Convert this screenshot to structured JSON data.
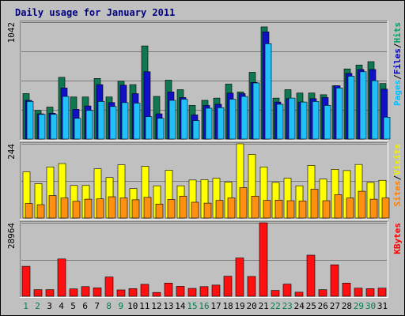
{
  "chart_data": {
    "type": "bar",
    "title": "Daily usage for January 2011",
    "categories": [
      "1",
      "2",
      "3",
      "4",
      "5",
      "6",
      "7",
      "8",
      "9",
      "10",
      "11",
      "12",
      "13",
      "14",
      "15",
      "16",
      "17",
      "18",
      "19",
      "20",
      "21",
      "22",
      "23",
      "24",
      "25",
      "26",
      "27",
      "28",
      "29",
      "30",
      "31"
    ],
    "weekend_days": [
      "1",
      "2",
      "8",
      "9",
      "15",
      "16",
      "22",
      "23",
      "29",
      "30"
    ],
    "panels": [
      {
        "id": "hits-files-pages",
        "max_label": "1042",
        "ylim": [
          0,
          1042
        ],
        "axis_labels": [
          {
            "text": "Pages",
            "color": "#00c0ff"
          },
          {
            "text": "Files",
            "color": "#0000c0"
          },
          {
            "text": "Hits",
            "color": "#00a060"
          }
        ],
        "series": [
          {
            "name": "Hits",
            "color": "#107850",
            "values": [
              405,
              255,
              285,
              550,
              375,
              375,
              540,
              375,
              515,
              485,
              830,
              380,
              525,
              440,
              300,
              345,
              365,
              490,
              420,
              595,
              1000,
              365,
              440,
              410,
              410,
              395,
              475,
              625,
              660,
              690,
              495
            ]
          },
          {
            "name": "Files",
            "color": "#1010c8",
            "values": [
              345,
              225,
              230,
              455,
              265,
              295,
              485,
              325,
              480,
              405,
              600,
              225,
              420,
              370,
              215,
              300,
              310,
              410,
              405,
              505,
              955,
              330,
              360,
              330,
              360,
              370,
              475,
              585,
              620,
              620,
              445
            ]
          },
          {
            "name": "Pages",
            "color": "#20c0f8",
            "values": [
              335,
              220,
              220,
              380,
              185,
              255,
              335,
              290,
              325,
              320,
              200,
              185,
              345,
              355,
              165,
              275,
              280,
              355,
              380,
              500,
              850,
              310,
              365,
              330,
              335,
              300,
              455,
              560,
              600,
              520,
              195
            ]
          }
        ]
      },
      {
        "id": "visits-sites",
        "max_label": "244",
        "ylim": [
          0,
          244
        ],
        "axis_labels": [
          {
            "text": "Sites",
            "color": "#ff8000"
          },
          {
            "text": "Visits",
            "color": "#f0f000"
          }
        ],
        "series": [
          {
            "name": "Visits",
            "color": "#ffff00",
            "values": [
              152,
              113,
              168,
              179,
              107,
              107,
              162,
              133,
              175,
              97,
              170,
              106,
              157,
              106,
              125,
              126,
              131,
              118,
              244,
              209,
              168,
              117,
              131,
              106,
              173,
              128,
              160,
              156,
              176,
              117,
              124
            ]
          },
          {
            "name": "Sites",
            "color": "#ff9010",
            "values": [
              48,
              44,
              74,
              66,
              55,
              62,
              63,
              70,
              66,
              60,
              68,
              46,
              61,
              72,
              52,
              49,
              58,
              66,
              100,
              72,
              58,
              59,
              57,
              56,
              95,
              57,
              77,
              66,
              88,
              62,
              66
            ]
          }
        ]
      },
      {
        "id": "kbytes",
        "max_label": "28964",
        "ylim": [
          0,
          28964
        ],
        "axis_labels": [
          {
            "text": "KBytes",
            "color": "#ff0000"
          }
        ],
        "series": [
          {
            "name": "KBytes",
            "color": "#ff1010",
            "values": [
              11800,
              2600,
              2600,
              14700,
              2900,
              3800,
              3300,
              7600,
              2500,
              3000,
              4700,
              1500,
              5200,
              3900,
              3100,
              3800,
              4400,
              7900,
              15100,
              7800,
              28964,
              2300,
              4800,
              1600,
              16200,
              2600,
              12400,
              5200,
              3200,
              3000,
              3200
            ]
          }
        ]
      }
    ]
  }
}
